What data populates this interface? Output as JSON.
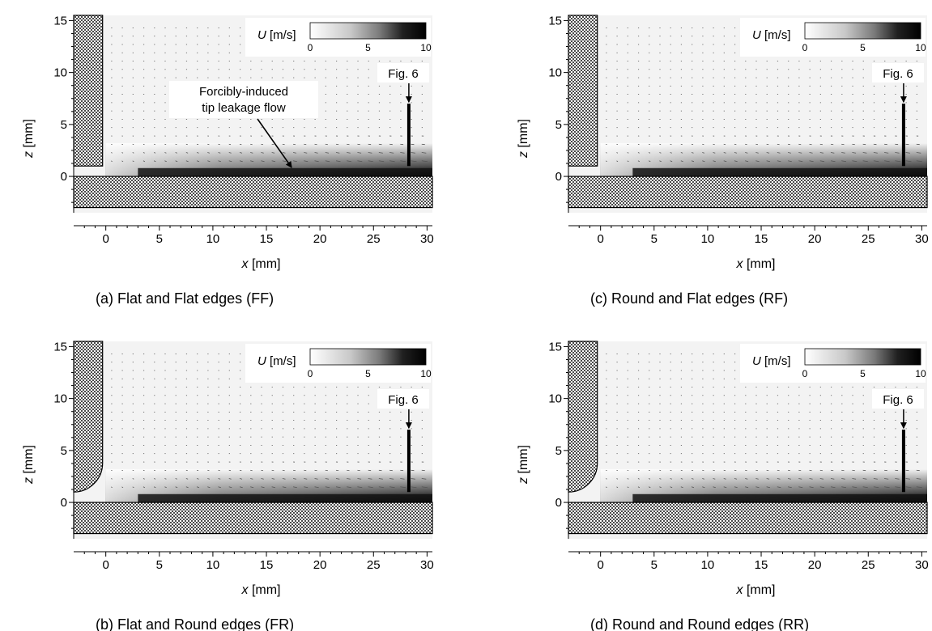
{
  "chart_data": [
    {
      "type": "heatmap",
      "panel": "a",
      "caption": "(a)  Flat and Flat edges (FF)",
      "xlabel_var": "x",
      "xlabel_unit": "[mm]",
      "ylabel_var": "z",
      "ylabel_unit": "[mm]",
      "xlim": [
        -3,
        30.5
      ],
      "ylim": [
        -3.5,
        15.5
      ],
      "x_ticks": [
        0,
        5,
        10,
        15,
        20,
        25,
        30
      ],
      "y_ticks": [
        0,
        5,
        10,
        15
      ],
      "colorbar": {
        "var": "U",
        "unit": "[m/s]",
        "range": [
          0,
          10
        ],
        "ticks": [
          0,
          5,
          10
        ],
        "colormap": "white-to-black"
      },
      "edge_shape": "flat",
      "marker": {
        "label": "Fig. 6",
        "x": 28.3,
        "z_top": 7,
        "z_bottom": 1
      },
      "annotation": {
        "text_lines": [
          "Forcibly-induced",
          "tip leakage flow"
        ],
        "target": [
          17.5,
          0.4
        ]
      }
    },
    {
      "type": "heatmap",
      "panel": "c",
      "caption": "(c)  Round and Flat edges (RF)",
      "xlabel_var": "x",
      "xlabel_unit": "[mm]",
      "ylabel_var": "z",
      "ylabel_unit": "[mm]",
      "xlim": [
        -3,
        30.5
      ],
      "ylim": [
        -3.5,
        15.5
      ],
      "x_ticks": [
        0,
        5,
        10,
        15,
        20,
        25,
        30
      ],
      "y_ticks": [
        0,
        5,
        10,
        15
      ],
      "colorbar": {
        "var": "U",
        "unit": "[m/s]",
        "range": [
          0,
          10
        ],
        "ticks": [
          0,
          5,
          10
        ],
        "colormap": "white-to-black"
      },
      "edge_shape": "flat",
      "marker": {
        "label": "Fig. 6",
        "x": 28.3,
        "z_top": 7,
        "z_bottom": 1
      }
    },
    {
      "type": "heatmap",
      "panel": "b",
      "caption": "(b)  Flat and Round edges (FR)",
      "xlabel_var": "x",
      "xlabel_unit": "[mm]",
      "ylabel_var": "z",
      "ylabel_unit": "[mm]",
      "xlim": [
        -3,
        30.5
      ],
      "ylim": [
        -3.5,
        15.5
      ],
      "x_ticks": [
        0,
        5,
        10,
        15,
        20,
        25,
        30
      ],
      "y_ticks": [
        0,
        5,
        10,
        15
      ],
      "colorbar": {
        "var": "U",
        "unit": "[m/s]",
        "range": [
          0,
          10
        ],
        "ticks": [
          0,
          5,
          10
        ],
        "colormap": "white-to-black"
      },
      "edge_shape": "round",
      "marker": {
        "label": "Fig. 6",
        "x": 28.3,
        "z_top": 7,
        "z_bottom": 1
      }
    },
    {
      "type": "heatmap",
      "panel": "d",
      "caption": "(d)  Round and Round edges (RR)",
      "xlabel_var": "x",
      "xlabel_unit": "[mm]",
      "ylabel_var": "z",
      "ylabel_unit": "[mm]",
      "xlim": [
        -3,
        30.5
      ],
      "ylim": [
        -3.5,
        15.5
      ],
      "x_ticks": [
        0,
        5,
        10,
        15,
        20,
        25,
        30
      ],
      "y_ticks": [
        0,
        5,
        10,
        15
      ],
      "colorbar": {
        "var": "U",
        "unit": "[m/s]",
        "range": [
          0,
          10
        ],
        "ticks": [
          0,
          5,
          10
        ],
        "colormap": "white-to-black"
      },
      "edge_shape": "round",
      "marker": {
        "label": "Fig. 6",
        "x": 28.3,
        "z_top": 7,
        "z_bottom": 1
      }
    }
  ]
}
